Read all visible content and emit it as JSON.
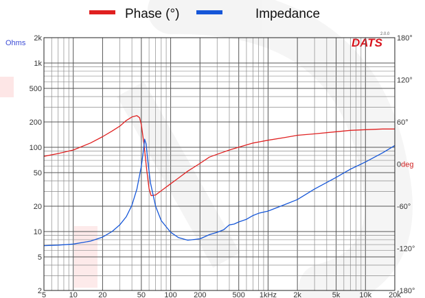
{
  "legend": [
    {
      "label": "Phase (°)",
      "color": "#e02020"
    },
    {
      "label": "Impedance",
      "color": "#1556d8"
    }
  ],
  "brand": {
    "name": "DATS",
    "version": "2.0.0"
  },
  "chart_data": {
    "type": "line",
    "x_scale": "log",
    "x_range": [
      5,
      20000
    ],
    "x_ticks": [
      {
        "v": 5,
        "label": "5"
      },
      {
        "v": 10,
        "label": "10"
      },
      {
        "v": 20,
        "label": "20"
      },
      {
        "v": 50,
        "label": "50"
      },
      {
        "v": 100,
        "label": "100"
      },
      {
        "v": 200,
        "label": "200"
      },
      {
        "v": 500,
        "label": "500"
      },
      {
        "v": 1000,
        "label": "1kHz"
      },
      {
        "v": 2000,
        "label": "2k"
      },
      {
        "v": 5000,
        "label": "5k"
      },
      {
        "v": 10000,
        "label": "10k"
      },
      {
        "v": 20000,
        "label": "20k"
      }
    ],
    "y_left": {
      "unit": "Ohms",
      "scale": "log",
      "range": [
        2,
        2000
      ],
      "ticks": [
        {
          "v": 2,
          "label": "2"
        },
        {
          "v": 5,
          "label": "5"
        },
        {
          "v": 10,
          "label": "10"
        },
        {
          "v": 20,
          "label": "20"
        },
        {
          "v": 50,
          "label": "50"
        },
        {
          "v": 100,
          "label": "100"
        },
        {
          "v": 200,
          "label": "200"
        },
        {
          "v": 500,
          "label": "500"
        },
        {
          "v": 1000,
          "label": "1k"
        },
        {
          "v": 2000,
          "label": "2k"
        }
      ]
    },
    "y_right": {
      "unit": "deg",
      "range": [
        -180,
        180
      ],
      "ticks": [
        {
          "v": 180,
          "label": "180°"
        },
        {
          "v": 120,
          "label": "120°"
        },
        {
          "v": 60,
          "label": "60°"
        },
        {
          "v": 0,
          "label": "0"
        },
        {
          "v": -60,
          "label": "-60°"
        },
        {
          "v": -120,
          "label": "-120°"
        },
        {
          "v": -180,
          "label": "-180°"
        }
      ]
    },
    "grid": true,
    "series": [
      {
        "name": "Phase (°)",
        "axis": "right",
        "color": "#e02020",
        "points": [
          [
            5,
            11
          ],
          [
            7,
            15
          ],
          [
            10,
            20
          ],
          [
            15,
            30
          ],
          [
            20,
            39
          ],
          [
            25,
            47
          ],
          [
            30,
            54
          ],
          [
            35,
            62
          ],
          [
            40,
            67
          ],
          [
            45,
            69
          ],
          [
            48,
            66
          ],
          [
            50,
            56
          ],
          [
            53,
            30
          ],
          [
            57,
            -10
          ],
          [
            60,
            -35
          ],
          [
            63,
            -45
          ],
          [
            70,
            -44
          ],
          [
            80,
            -38
          ],
          [
            100,
            -28
          ],
          [
            120,
            -20
          ],
          [
            150,
            -10
          ],
          [
            200,
            1
          ],
          [
            250,
            10
          ],
          [
            300,
            14
          ],
          [
            400,
            20
          ],
          [
            500,
            24
          ],
          [
            700,
            30
          ],
          [
            1000,
            34
          ],
          [
            1500,
            38
          ],
          [
            2000,
            41
          ],
          [
            3000,
            43
          ],
          [
            5000,
            46
          ],
          [
            7000,
            48
          ],
          [
            10000,
            49
          ],
          [
            15000,
            50
          ],
          [
            20000,
            50
          ]
        ]
      },
      {
        "name": "Impedance",
        "axis": "left",
        "color": "#1556d8",
        "points": [
          [
            5,
            6.8
          ],
          [
            7,
            6.9
          ],
          [
            10,
            7.1
          ],
          [
            15,
            7.7
          ],
          [
            20,
            8.6
          ],
          [
            25,
            10
          ],
          [
            30,
            12
          ],
          [
            35,
            15
          ],
          [
            40,
            20.5
          ],
          [
            45,
            32
          ],
          [
            50,
            60
          ],
          [
            53,
            100
          ],
          [
            54,
            125
          ],
          [
            56,
            110
          ],
          [
            58,
            72
          ],
          [
            62,
            38
          ],
          [
            70,
            20
          ],
          [
            80,
            13.5
          ],
          [
            100,
            9.8
          ],
          [
            120,
            8.5
          ],
          [
            150,
            7.9
          ],
          [
            200,
            8.2
          ],
          [
            250,
            9.2
          ],
          [
            300,
            9.8
          ],
          [
            350,
            10.5
          ],
          [
            400,
            12
          ],
          [
            450,
            12.3
          ],
          [
            500,
            13
          ],
          [
            600,
            14
          ],
          [
            700,
            15.5
          ],
          [
            800,
            16.5
          ],
          [
            1000,
            17.5
          ],
          [
            1500,
            21
          ],
          [
            2000,
            24
          ],
          [
            3000,
            32
          ],
          [
            5000,
            44
          ],
          [
            7000,
            55
          ],
          [
            10000,
            67
          ],
          [
            15000,
            86
          ],
          [
            20000,
            105
          ]
        ]
      }
    ]
  }
}
